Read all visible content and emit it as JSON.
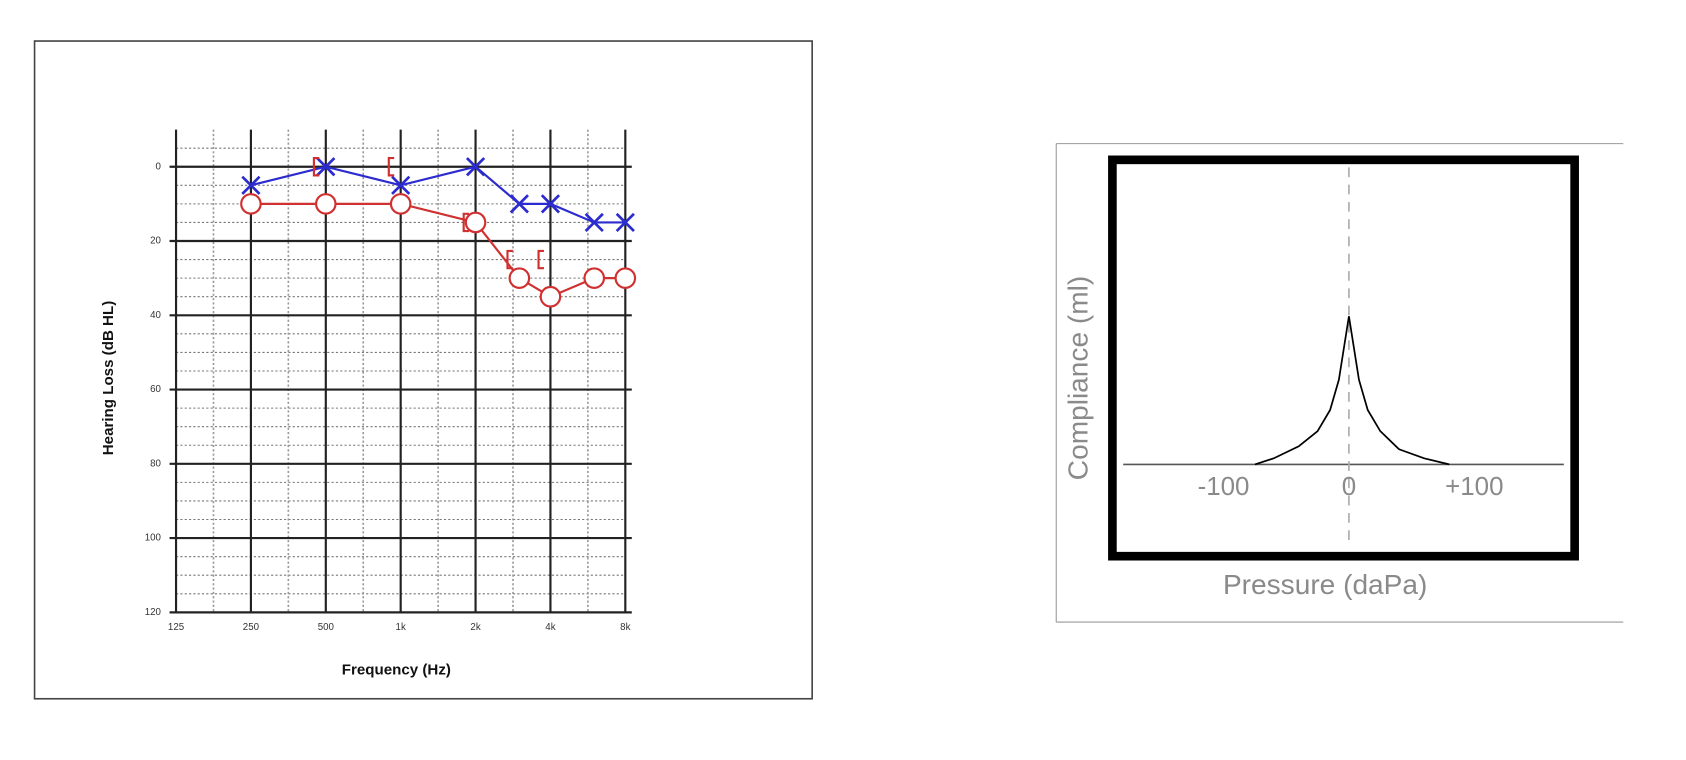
{
  "chart_data": [
    {
      "type": "line",
      "xlabel": "Frequency (Hz)",
      "ylabel": "Hearing Loss (dB HL)",
      "log_x": true,
      "y_inverted": true,
      "xlim": [
        125,
        8000
      ],
      "ylim": [
        -10,
        120
      ],
      "xticks": [
        125,
        250,
        500,
        {
          "value": 1000,
          "label": "1k"
        },
        {
          "value": 2000,
          "label": "2k"
        },
        {
          "value": 4000,
          "label": "4k"
        },
        {
          "value": 8000,
          "label": "8k"
        }
      ],
      "yticks": [
        0,
        20,
        40,
        60,
        80,
        100,
        120
      ],
      "grid": true,
      "series": [
        {
          "color": "#2b2bd0",
          "marker": "x",
          "line": true,
          "x": [
            250,
            500,
            1000,
            2000,
            3000,
            4000,
            6000,
            8000
          ],
          "values": [
            5,
            0,
            5,
            0,
            10,
            10,
            15,
            15
          ]
        },
        {
          "color": "#d03030",
          "marker": "o",
          "line": true,
          "x": [
            250,
            500,
            1000,
            2000,
            3000,
            4000,
            6000,
            8000
          ],
          "values": [
            10,
            10,
            10,
            15,
            30,
            35,
            30,
            30
          ]
        },
        {
          "color": "#d03030",
          "marker": "bracket",
          "line": false,
          "x": [
            500,
            1000,
            2000,
            3000,
            4000
          ],
          "values": [
            0,
            0,
            15,
            25,
            25
          ]
        }
      ]
    },
    {
      "type": "line",
      "xlabel": "Pressure (daPa)",
      "ylabel": "Compliance (ml)",
      "xlim": [
        -180,
        180
      ],
      "ylim": [
        0,
        1
      ],
      "xticks": [
        -100,
        0,
        {
          "value": 100,
          "label": "+100"
        }
      ],
      "series": [
        {
          "color": "#000000",
          "line": true,
          "x": [
            -75,
            -60,
            -40,
            -25,
            -15,
            -8,
            0,
            8,
            15,
            25,
            40,
            60,
            80
          ],
          "values": [
            0,
            0.02,
            0.06,
            0.11,
            0.18,
            0.28,
            0.49,
            0.28,
            0.18,
            0.11,
            0.05,
            0.02,
            0
          ]
        }
      ]
    }
  ]
}
